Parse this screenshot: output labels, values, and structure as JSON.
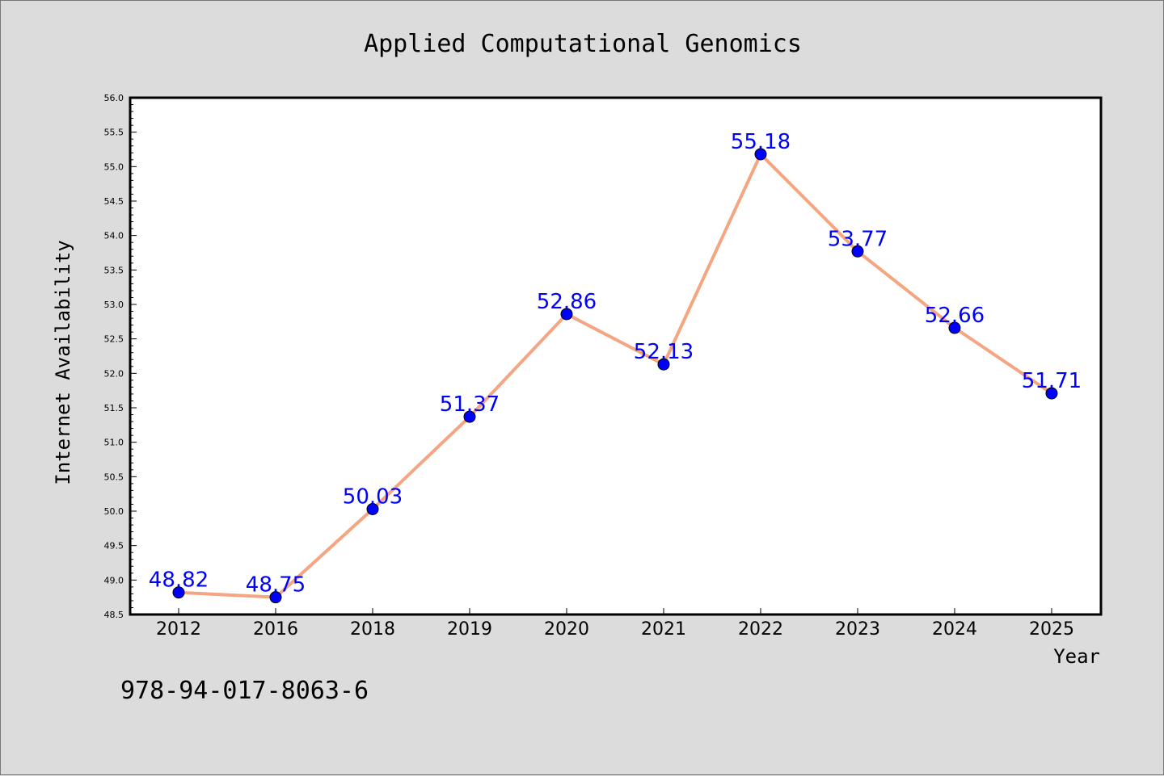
{
  "footer": {
    "code": "978-94-017-8063-6"
  },
  "colors": {
    "background": "#dcdcdc",
    "plot_background": "#ffffff",
    "line": "#f4a582",
    "marker": "#0000ff",
    "label": "#0000ff"
  },
  "chart_data": {
    "type": "line",
    "title": "Applied Computational Genomics",
    "xlabel": "Year",
    "ylabel": "Internet Availability",
    "categories": [
      "2012",
      "2016",
      "2018",
      "2019",
      "2020",
      "2021",
      "2022",
      "2023",
      "2024",
      "2025"
    ],
    "values": [
      48.82,
      48.75,
      50.03,
      51.37,
      52.86,
      52.13,
      55.18,
      53.77,
      52.66,
      51.71
    ],
    "data_labels": [
      "48.82",
      "48.75",
      "50.03",
      "51.37",
      "52.86",
      "52.13",
      "55.18",
      "53.77",
      "52.66",
      "51.71"
    ],
    "ylim": [
      48.5,
      56.0
    ],
    "ytick_labels": [
      "48.5",
      "49.0",
      "49.5",
      "50.0",
      "50.5",
      "51.0",
      "51.5",
      "52.0",
      "52.5",
      "53.0",
      "53.5",
      "54.0",
      "54.5",
      "55.0",
      "55.5",
      "56.0"
    ],
    "grid": false,
    "legend": "none"
  }
}
